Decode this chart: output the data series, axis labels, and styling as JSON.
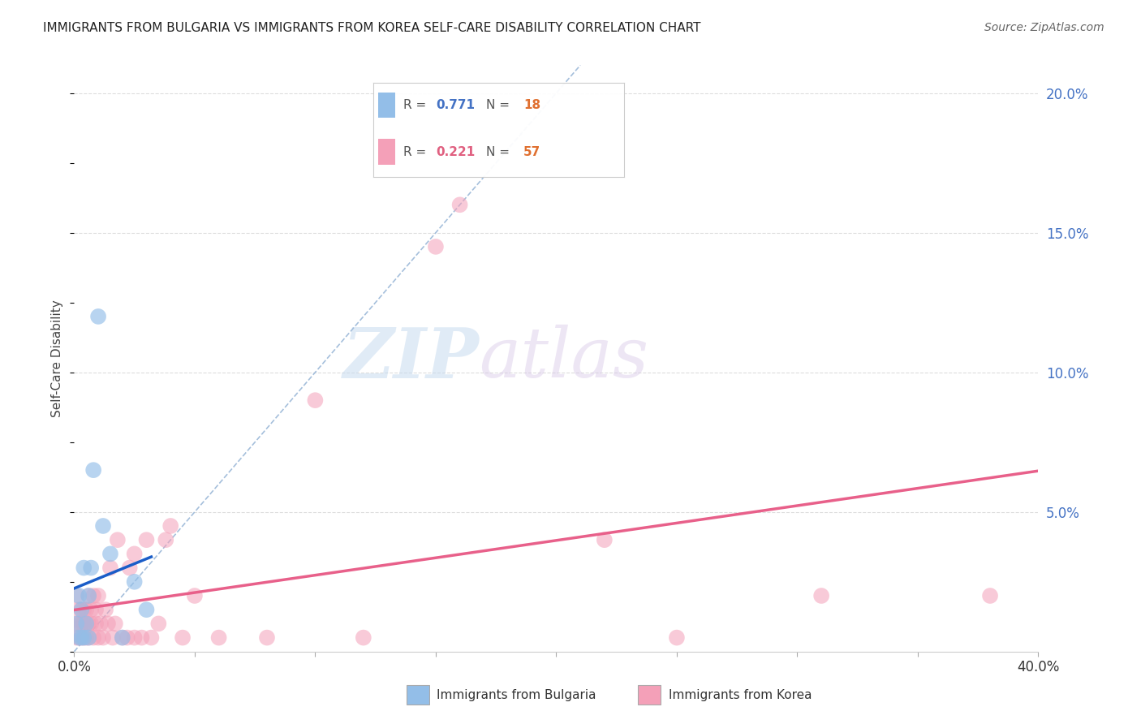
{
  "title": "IMMIGRANTS FROM BULGARIA VS IMMIGRANTS FROM KOREA SELF-CARE DISABILITY CORRELATION CHART",
  "source": "Source: ZipAtlas.com",
  "ylabel": "Self-Care Disability",
  "xlim": [
    0.0,
    0.4
  ],
  "ylim": [
    0.0,
    0.21
  ],
  "xticks": [
    0.0,
    0.05,
    0.1,
    0.15,
    0.2,
    0.25,
    0.3,
    0.35,
    0.4
  ],
  "yticks_right": [
    0.05,
    0.1,
    0.15,
    0.2
  ],
  "ytick_right_labels": [
    "5.0%",
    "10.0%",
    "15.0%",
    "20.0%"
  ],
  "bulgaria_R": 0.771,
  "bulgaria_N": 18,
  "korea_R": 0.221,
  "korea_N": 57,
  "bulgaria_color": "#93BEE8",
  "korea_color": "#F4A0B8",
  "bulgaria_line_color": "#1A5DC8",
  "korea_line_color": "#E8608A",
  "ref_line_color": "#9BB8D8",
  "watermark_zip": "ZIP",
  "watermark_atlas": "atlas",
  "bulgaria_x": [
    0.001,
    0.002,
    0.002,
    0.003,
    0.003,
    0.004,
    0.004,
    0.005,
    0.006,
    0.006,
    0.007,
    0.008,
    0.01,
    0.012,
    0.015,
    0.02,
    0.025,
    0.03
  ],
  "bulgaria_y": [
    0.01,
    0.005,
    0.02,
    0.005,
    0.015,
    0.005,
    0.03,
    0.01,
    0.005,
    0.02,
    0.03,
    0.065,
    0.12,
    0.045,
    0.035,
    0.005,
    0.025,
    0.015
  ],
  "korea_x": [
    0.001,
    0.001,
    0.001,
    0.002,
    0.002,
    0.002,
    0.003,
    0.003,
    0.003,
    0.004,
    0.004,
    0.004,
    0.005,
    0.005,
    0.005,
    0.006,
    0.006,
    0.006,
    0.007,
    0.007,
    0.008,
    0.008,
    0.009,
    0.009,
    0.01,
    0.01,
    0.011,
    0.012,
    0.013,
    0.014,
    0.015,
    0.016,
    0.017,
    0.018,
    0.02,
    0.022,
    0.023,
    0.025,
    0.025,
    0.028,
    0.03,
    0.032,
    0.035,
    0.038,
    0.04,
    0.045,
    0.05,
    0.06,
    0.08,
    0.1,
    0.12,
    0.15,
    0.16,
    0.22,
    0.25,
    0.31,
    0.38
  ],
  "korea_y": [
    0.01,
    0.005,
    0.02,
    0.005,
    0.015,
    0.01,
    0.005,
    0.01,
    0.015,
    0.005,
    0.01,
    0.015,
    0.005,
    0.01,
    0.015,
    0.005,
    0.01,
    0.02,
    0.01,
    0.015,
    0.005,
    0.02,
    0.01,
    0.015,
    0.005,
    0.02,
    0.01,
    0.005,
    0.015,
    0.01,
    0.03,
    0.005,
    0.01,
    0.04,
    0.005,
    0.005,
    0.03,
    0.005,
    0.035,
    0.005,
    0.04,
    0.005,
    0.01,
    0.04,
    0.045,
    0.005,
    0.02,
    0.005,
    0.005,
    0.09,
    0.005,
    0.145,
    0.16,
    0.04,
    0.005,
    0.02,
    0.02
  ]
}
